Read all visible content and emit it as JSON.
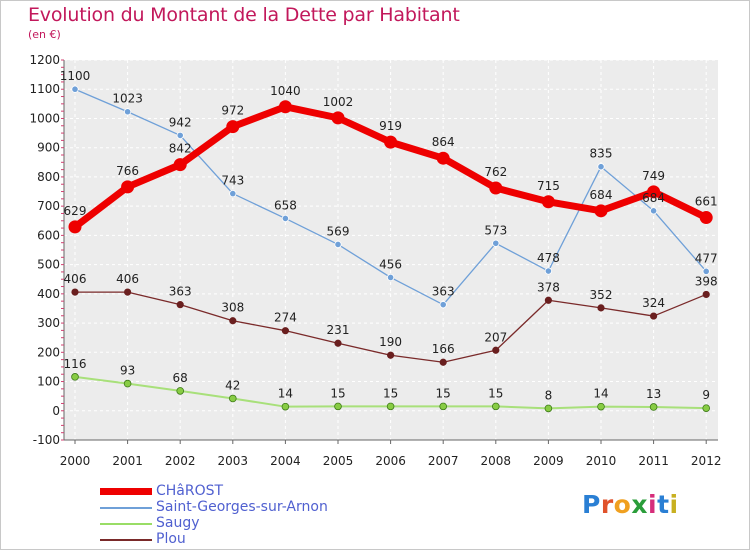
{
  "title": "Evolution du Montant de la Dette par Habitant",
  "unit_label": "(en €)",
  "logo_text": "Proxiti",
  "chart_data": {
    "type": "line",
    "title": "Evolution du Montant de la Dette par Habitant",
    "subtitle": "(en €)",
    "xlabel": "",
    "ylabel": "",
    "x": [
      "2000",
      "2001",
      "2002",
      "2003",
      "2004",
      "2005",
      "2006",
      "2007",
      "2008",
      "2009",
      "2010",
      "2011",
      "2012"
    ],
    "ylim": [
      -100,
      1200
    ],
    "yticks": [
      -100,
      0,
      100,
      200,
      300,
      400,
      500,
      600,
      700,
      800,
      900,
      1000,
      1100,
      1200
    ],
    "grid": true,
    "legend_position": "bottom-left",
    "series": [
      {
        "name": "CHâROST",
        "color": "#ee0000",
        "values": [
          629,
          766,
          842,
          972,
          1040,
          1002,
          919,
          864,
          762,
          715,
          684,
          749,
          661
        ]
      },
      {
        "name": "Saint-Georges-sur-Arnon",
        "color": "#6fa0d8",
        "values": [
          1100,
          1023,
          942,
          743,
          658,
          569,
          456,
          363,
          573,
          478,
          835,
          684,
          477
        ]
      },
      {
        "name": "Saugy",
        "color": "#99dd66",
        "values": [
          116,
          93,
          68,
          42,
          14,
          15,
          15,
          15,
          15,
          8,
          14,
          13,
          9
        ]
      },
      {
        "name": "Plou",
        "color": "#7a2a2a",
        "values": [
          406,
          406,
          363,
          308,
          274,
          231,
          190,
          166,
          207,
          378,
          352,
          324,
          398
        ]
      }
    ]
  }
}
